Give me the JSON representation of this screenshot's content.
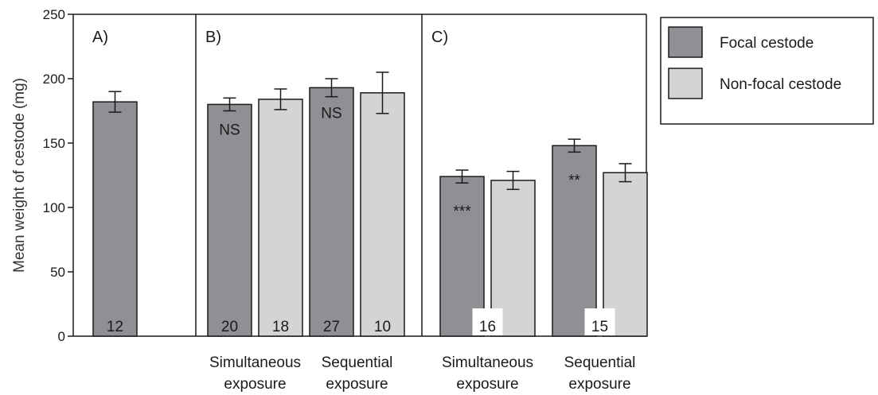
{
  "chart_data": {
    "type": "bar",
    "ylabel": "Mean weight of cestode (mg)",
    "ylim": [
      0,
      250
    ],
    "yticks": [
      0,
      50,
      100,
      150,
      200,
      250
    ],
    "grid": false,
    "legend": {
      "placement": "right",
      "entries": [
        {
          "name": "Focal cestode",
          "color": "#909094"
        },
        {
          "name": "Non-focal cestode",
          "color": "#d3d4d6"
        }
      ]
    },
    "panels": [
      {
        "label": "A)",
        "groups": [
          {
            "category": "",
            "bars": [
              {
                "series": "Focal cestode",
                "value": 182,
                "error": 8,
                "n": "12",
                "annotation": ""
              }
            ]
          }
        ]
      },
      {
        "label": "B)",
        "groups": [
          {
            "category": [
              "Simultaneous",
              "exposure"
            ],
            "bars": [
              {
                "series": "Focal cestode",
                "value": 180,
                "error": 5,
                "n": "20",
                "annotation": "NS"
              },
              {
                "series": "Non-focal cestode",
                "value": 184,
                "error": 8,
                "n": "18",
                "annotation": ""
              }
            ]
          },
          {
            "category": [
              "Sequential",
              "exposure"
            ],
            "bars": [
              {
                "series": "Focal cestode",
                "value": 193,
                "error": 7,
                "n": "27",
                "annotation": "NS"
              },
              {
                "series": "Non-focal cestode",
                "value": 189,
                "error": 16,
                "n": "10",
                "annotation": ""
              }
            ]
          }
        ]
      },
      {
        "label": "C)",
        "groups": [
          {
            "category": [
              "Simultaneous",
              "exposure"
            ],
            "n": "16",
            "bars": [
              {
                "series": "Focal cestode",
                "value": 124,
                "error": 5,
                "annotation": "***"
              },
              {
                "series": "Non-focal cestode",
                "value": 121,
                "error": 7,
                "annotation": ""
              }
            ]
          },
          {
            "category": [
              "Sequential",
              "exposure"
            ],
            "n": "15",
            "bars": [
              {
                "series": "Focal cestode",
                "value": 148,
                "error": 5,
                "annotation": "**"
              },
              {
                "series": "Non-focal cestode",
                "value": 127,
                "error": 7,
                "annotation": ""
              }
            ]
          }
        ]
      }
    ]
  }
}
